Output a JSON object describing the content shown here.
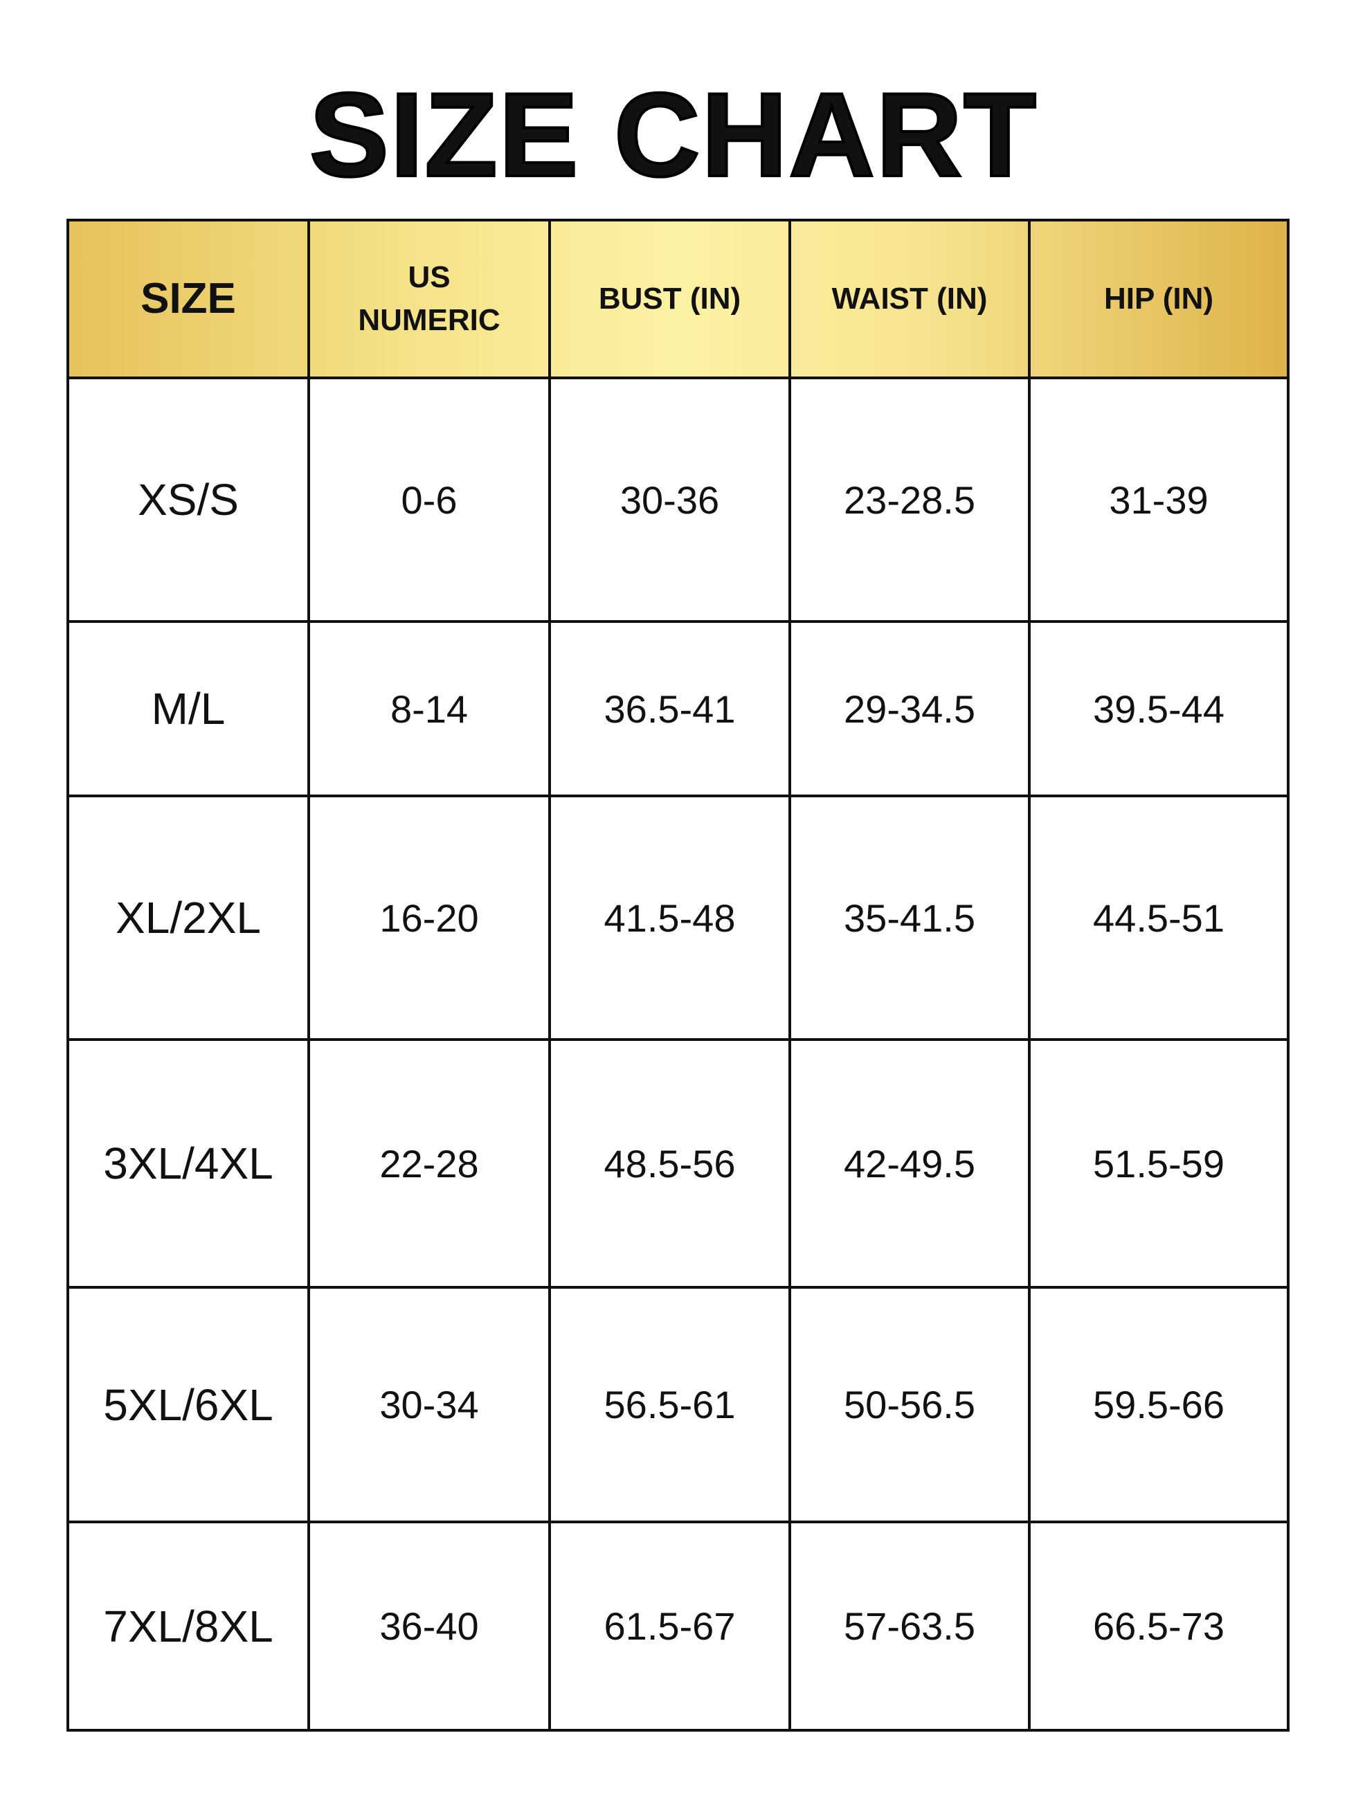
{
  "header": {
    "title": "SIZE CHART"
  },
  "table": {
    "columns": [
      "SIZE",
      "US NUMERIC",
      "BUST (IN)",
      "WAIST (IN)",
      "HIP (IN)"
    ],
    "rows": [
      [
        "XS/S",
        "0-6",
        "30-36",
        "23-28.5",
        "31-39"
      ],
      [
        "M/L",
        "8-14",
        "36.5-41",
        "29-34.5",
        "39.5-44"
      ],
      [
        "XL/2XL",
        "16-20",
        "41.5-48",
        "35-41.5",
        "44.5-51"
      ],
      [
        "3XL/4XL",
        "22-28",
        "48.5-56",
        "42-49.5",
        "51.5-59"
      ],
      [
        "5XL/6XL",
        "30-34",
        "56.5-61",
        "50-56.5",
        "59.5-66"
      ],
      [
        "7XL/8XL",
        "36-40",
        "61.5-67",
        "57-63.5",
        "66.5-73"
      ]
    ]
  }
}
